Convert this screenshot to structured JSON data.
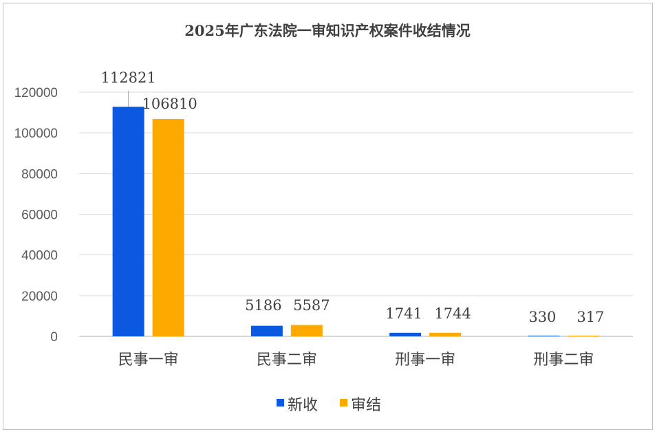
{
  "chart_data": {
    "type": "bar",
    "title": "2025年广东法院一审知识产权案件收结情况",
    "categories": [
      "民事一审",
      "民事二审",
      "刑事一审",
      "刑事二审"
    ],
    "series": [
      {
        "name": "新收",
        "values": [
          112821,
          5186,
          1741,
          330
        ],
        "color": "#0a59e0"
      },
      {
        "name": "审结",
        "values": [
          106810,
          5587,
          1744,
          317
        ],
        "color": "#fda900"
      }
    ],
    "yticks": [
      "0",
      "20000",
      "40000",
      "60000",
      "80000",
      "100000",
      "120000"
    ],
    "ylim": [
      0,
      120000
    ],
    "grid": true,
    "legend_position": "bottom",
    "gridline_color": "#d9d9d9",
    "axis_color": "#bfbfbf"
  }
}
